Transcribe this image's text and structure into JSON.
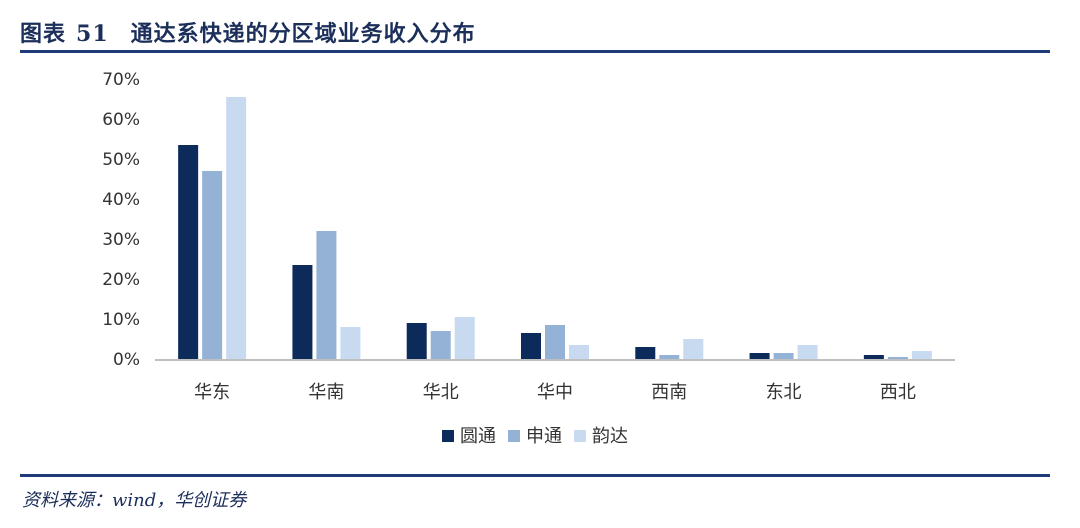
{
  "header": {
    "label": "图表",
    "number": "51",
    "text": "通达系快递的分区域业务收入分布"
  },
  "source": "资料来源：wind，华创证券",
  "chart_data": {
    "type": "bar",
    "categories": [
      "华东",
      "华南",
      "华北",
      "华中",
      "西南",
      "东北",
      "西北"
    ],
    "series": [
      {
        "name": "圆通",
        "color": "#0d2b5a",
        "values": [
          53.5,
          23.5,
          9.0,
          6.5,
          3.0,
          1.5,
          1.0
        ]
      },
      {
        "name": "申通",
        "color": "#94b2d6",
        "values": [
          47.0,
          32.0,
          7.0,
          8.5,
          1.0,
          1.5,
          0.5
        ]
      },
      {
        "name": "韵达",
        "color": "#c8daf0",
        "values": [
          65.5,
          8.0,
          10.5,
          3.5,
          5.0,
          3.5,
          2.0
        ]
      }
    ],
    "ylim": [
      0,
      70
    ],
    "yticks": [
      "0%",
      "10%",
      "20%",
      "30%",
      "40%",
      "50%",
      "60%",
      "70%"
    ],
    "legend": "bottom",
    "grid": false
  }
}
